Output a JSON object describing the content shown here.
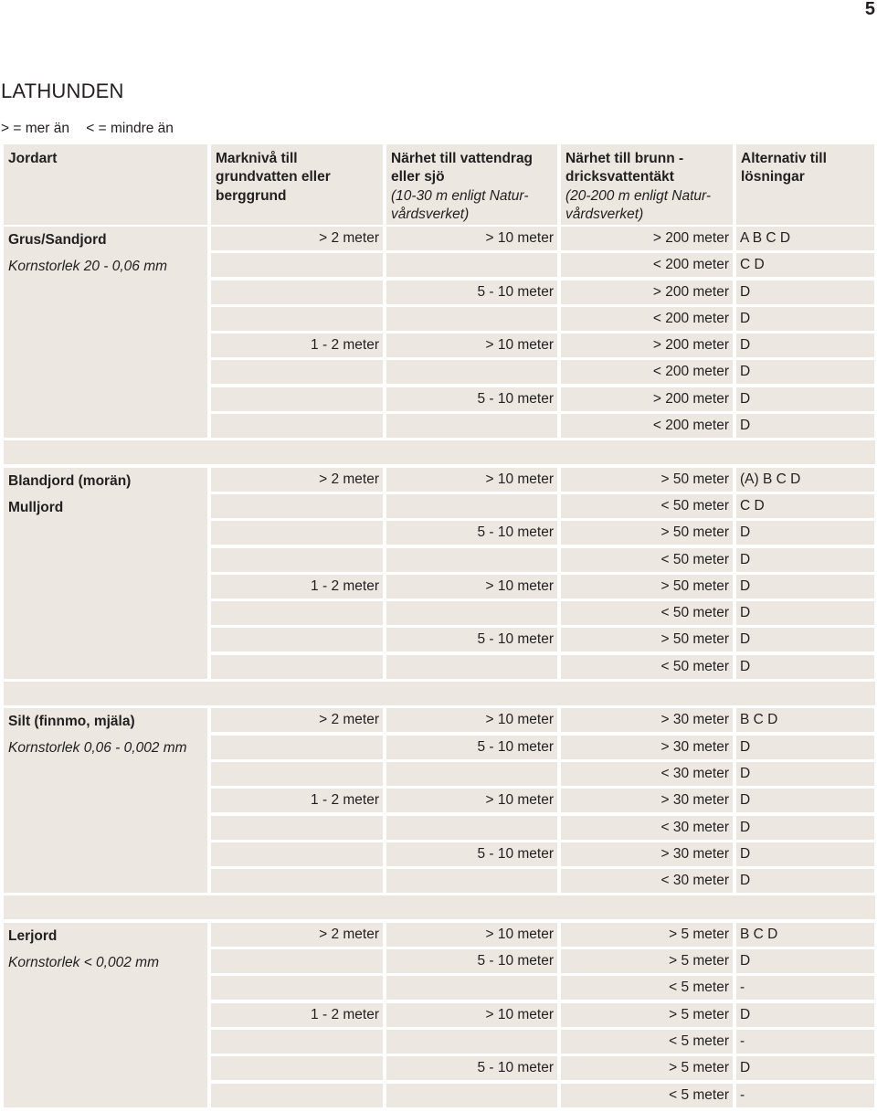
{
  "page_number": "5",
  "title": "LATHUNDEN",
  "legend": {
    "more": "> = mer än",
    "less": "< = mindre än"
  },
  "header": {
    "jordart": "Jordart",
    "markniva": "Marknivå till grundvatten eller berggrund",
    "vattendrag_title": "Närhet till vattendrag eller sjö",
    "vattendrag_note": "(10-30 m enligt Natur- vårdsverket)",
    "brunn_title": "Närhet till brunn - dricksvattentäkt",
    "brunn_note": "(20-200 m enligt Natur- vårdsverket)",
    "alternativ": "Alternativ till lösningar"
  },
  "groups": [
    {
      "name": "Grus/Sandjord",
      "grain": "Kornstorlek 20 - 0,06 mm",
      "rows": [
        {
          "mark": "> 2 meter",
          "vatt": "> 10 meter",
          "brun": "> 200 meter",
          "alt": "A B C D"
        },
        {
          "mark": "",
          "vatt": "",
          "brun": "< 200 meter",
          "alt": "C D"
        },
        {
          "mark": "",
          "vatt": "5 - 10 meter",
          "brun": "> 200 meter",
          "alt": "D"
        },
        {
          "mark": "",
          "vatt": "",
          "brun": "< 200 meter",
          "alt": "D"
        },
        {
          "mark": "1 - 2 meter",
          "vatt": "> 10 meter",
          "brun": "> 200 meter",
          "alt": "D"
        },
        {
          "mark": "",
          "vatt": "",
          "brun": "< 200 meter",
          "alt": "D"
        },
        {
          "mark": "",
          "vatt": "5 - 10 meter",
          "brun": "> 200 meter",
          "alt": "D"
        },
        {
          "mark": "",
          "vatt": "",
          "brun": "< 200 meter",
          "alt": "D"
        }
      ]
    },
    {
      "name": "Blandjord (morän)",
      "name2": "Mulljord",
      "grain": "",
      "rows": [
        {
          "mark": "> 2 meter",
          "vatt": "> 10 meter",
          "brun": "> 50 meter",
          "alt": "(A) B C D"
        },
        {
          "mark": "",
          "vatt": "",
          "brun": "< 50 meter",
          "alt": "C D"
        },
        {
          "mark": "",
          "vatt": "5 - 10 meter",
          "brun": "> 50 meter",
          "alt": "D"
        },
        {
          "mark": "",
          "vatt": "",
          "brun": "< 50 meter",
          "alt": "D"
        },
        {
          "mark": "1 - 2 meter",
          "vatt": "> 10 meter",
          "brun": "> 50 meter",
          "alt": "D"
        },
        {
          "mark": "",
          "vatt": "",
          "brun": "< 50 meter",
          "alt": "D"
        },
        {
          "mark": "",
          "vatt": "5 - 10 meter",
          "brun": "> 50 meter",
          "alt": "D"
        },
        {
          "mark": "",
          "vatt": "",
          "brun": "< 50 meter",
          "alt": "D"
        }
      ]
    },
    {
      "name": "Silt (finnmo, mjäla)",
      "grain": "Kornstorlek 0,06 - 0,002 mm",
      "rows": [
        {
          "mark": "> 2 meter",
          "vatt": "> 10 meter",
          "brun": "> 30 meter",
          "alt": "B C D"
        },
        {
          "mark": "",
          "vatt": "5 - 10 meter",
          "brun": "> 30 meter",
          "alt": "D"
        },
        {
          "mark": "",
          "vatt": "",
          "brun": "< 30 meter",
          "alt": "D"
        },
        {
          "mark": "1 - 2 meter",
          "vatt": "> 10 meter",
          "brun": "> 30 meter",
          "alt": "D"
        },
        {
          "mark": "",
          "vatt": "",
          "brun": "< 30 meter",
          "alt": "D"
        },
        {
          "mark": "",
          "vatt": "5 - 10 meter",
          "brun": "> 30 meter",
          "alt": "D"
        },
        {
          "mark": "",
          "vatt": "",
          "brun": "< 30 meter",
          "alt": "D"
        }
      ]
    },
    {
      "name": "Lerjord",
      "grain": "Kornstorlek < 0,002 mm",
      "rows": [
        {
          "mark": "> 2 meter",
          "vatt": "> 10 meter",
          "brun": "> 5 meter",
          "alt": "B C D"
        },
        {
          "mark": "",
          "vatt": "5 - 10 meter",
          "brun": "> 5 meter",
          "alt": "D"
        },
        {
          "mark": "",
          "vatt": "",
          "brun": "< 5 meter",
          "alt": "-"
        },
        {
          "mark": "1 - 2 meter",
          "vatt": "> 10 meter",
          "brun": "> 5 meter",
          "alt": "D"
        },
        {
          "mark": "",
          "vatt": "",
          "brun": "< 5 meter",
          "alt": "-"
        },
        {
          "mark": "",
          "vatt": "5 - 10 meter",
          "brun": "> 5 meter",
          "alt": "D"
        },
        {
          "mark": "",
          "vatt": "",
          "brun": "< 5 meter",
          "alt": "-"
        }
      ]
    }
  ]
}
